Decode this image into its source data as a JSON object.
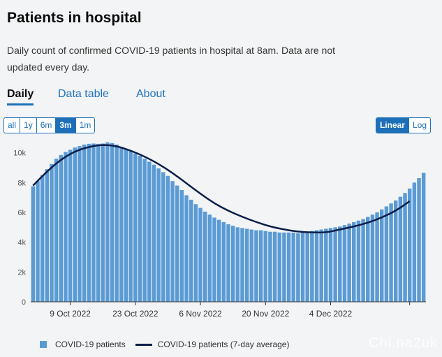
{
  "header": {
    "title": "Patients in hospital",
    "description": "Daily count of confirmed COVID-19 patients in hospital at 8am. Data are not updated every day."
  },
  "tabs": [
    {
      "label": "Daily",
      "active": true
    },
    {
      "label": "Data table",
      "active": false
    },
    {
      "label": "About",
      "active": false
    }
  ],
  "range_buttons": [
    "all",
    "1y",
    "6m",
    "3m",
    "1m"
  ],
  "range_selected": "3m",
  "scale_buttons": [
    "Linear",
    "Log"
  ],
  "scale_selected": "Linear",
  "legend": {
    "bars": "COVID-19 patients",
    "line": "COVID-19 patients (7-day average)"
  },
  "watermark": "Chi.na2uk",
  "colors": {
    "bar": "#5b9bd5",
    "line": "#0b1e4a",
    "accent": "#1d70b8"
  },
  "chart_data": {
    "type": "bar",
    "x_tick_labels": [
      "9 Oct 2022",
      "23 Oct 2022",
      "6 Nov 2022",
      "20 Nov 2022",
      "4 Dec 2022"
    ],
    "x_tick_dates": [
      "2022-10-09",
      "2022-10-23",
      "2022-11-06",
      "2022-11-20",
      "2022-12-04"
    ],
    "y_tick_labels": [
      "0",
      "2k",
      "4k",
      "6k",
      "8k",
      "10k"
    ],
    "ylim": [
      0,
      10500
    ],
    "grid": false,
    "legend_position": "bottom-left",
    "series": [
      {
        "name": "COVID-19 patients",
        "kind": "bar",
        "x": [
          "2022-10-01",
          "2022-10-02",
          "2022-10-03",
          "2022-10-04",
          "2022-10-05",
          "2022-10-06",
          "2022-10-07",
          "2022-10-08",
          "2022-10-09",
          "2022-10-10",
          "2022-10-11",
          "2022-10-12",
          "2022-10-13",
          "2022-10-14",
          "2022-10-15",
          "2022-10-16",
          "2022-10-17",
          "2022-10-18",
          "2022-10-19",
          "2022-10-20",
          "2022-10-21",
          "2022-10-22",
          "2022-10-23",
          "2022-10-24",
          "2022-10-25",
          "2022-10-26",
          "2022-10-27",
          "2022-10-28",
          "2022-10-29",
          "2022-10-30",
          "2022-10-31",
          "2022-11-01",
          "2022-11-02",
          "2022-11-03",
          "2022-11-04",
          "2022-11-05",
          "2022-11-06",
          "2022-11-07",
          "2022-11-08",
          "2022-11-09",
          "2022-11-10",
          "2022-11-11",
          "2022-11-12",
          "2022-11-13",
          "2022-11-14",
          "2022-11-15",
          "2022-11-16",
          "2022-11-17",
          "2022-11-18",
          "2022-11-19",
          "2022-11-20",
          "2022-11-21",
          "2022-11-22",
          "2022-11-23",
          "2022-11-24",
          "2022-11-25",
          "2022-11-26",
          "2022-11-27",
          "2022-11-28",
          "2022-11-29",
          "2022-11-30",
          "2022-12-01",
          "2022-12-02",
          "2022-12-03",
          "2022-12-04",
          "2022-12-05",
          "2022-12-06",
          "2022-12-07",
          "2022-12-08",
          "2022-12-09",
          "2022-12-10",
          "2022-12-11",
          "2022-12-12",
          "2022-12-13",
          "2022-12-14",
          "2022-12-15",
          "2022-12-16",
          "2022-12-17",
          "2022-12-18",
          "2022-12-19",
          "2022-12-20",
          "2022-12-21",
          "2022-12-22",
          "2022-12-23",
          "2022-12-24"
        ],
        "values": [
          7750,
          8100,
          8500,
          8900,
          9250,
          9600,
          9850,
          10050,
          10200,
          10350,
          10450,
          10550,
          10600,
          10620,
          10600,
          10620,
          10700,
          10650,
          10550,
          10400,
          10250,
          10100,
          9950,
          9800,
          9600,
          9400,
          9200,
          8950,
          8700,
          8450,
          8100,
          7800,
          7500,
          7150,
          6850,
          6550,
          6300,
          6050,
          5850,
          5650,
          5500,
          5350,
          5200,
          5100,
          5000,
          4950,
          4900,
          4850,
          4800,
          4800,
          4750,
          4700,
          4700,
          4650,
          4650,
          4650,
          4650,
          4600,
          4650,
          4700,
          4750,
          4800,
          4850,
          4900,
          4950,
          5000,
          5050,
          5150,
          5250,
          5350,
          5450,
          5550,
          5700,
          5850,
          6000,
          6200,
          6400,
          6600,
          6800,
          7050,
          7300,
          7600,
          8000,
          8300,
          8650
        ]
      },
      {
        "name": "COVID-19 patients (7-day average)",
        "kind": "line",
        "x": [
          "2022-10-01",
          "2022-10-04",
          "2022-10-07",
          "2022-10-10",
          "2022-10-13",
          "2022-10-16",
          "2022-10-19",
          "2022-10-22",
          "2022-10-25",
          "2022-10-28",
          "2022-10-31",
          "2022-11-03",
          "2022-11-06",
          "2022-11-09",
          "2022-11-12",
          "2022-11-15",
          "2022-11-18",
          "2022-11-21",
          "2022-11-24",
          "2022-11-27",
          "2022-11-30",
          "2022-12-03",
          "2022-12-06",
          "2022-12-09",
          "2022-12-12",
          "2022-12-15",
          "2022-12-18",
          "2022-12-21"
        ],
        "values": [
          7800,
          8750,
          9550,
          10100,
          10400,
          10550,
          10450,
          10150,
          9750,
          9250,
          8650,
          7950,
          7250,
          6600,
          6100,
          5700,
          5350,
          5050,
          4850,
          4700,
          4650,
          4650,
          4850,
          5050,
          5300,
          5650,
          6100,
          6750
        ]
      }
    ]
  }
}
